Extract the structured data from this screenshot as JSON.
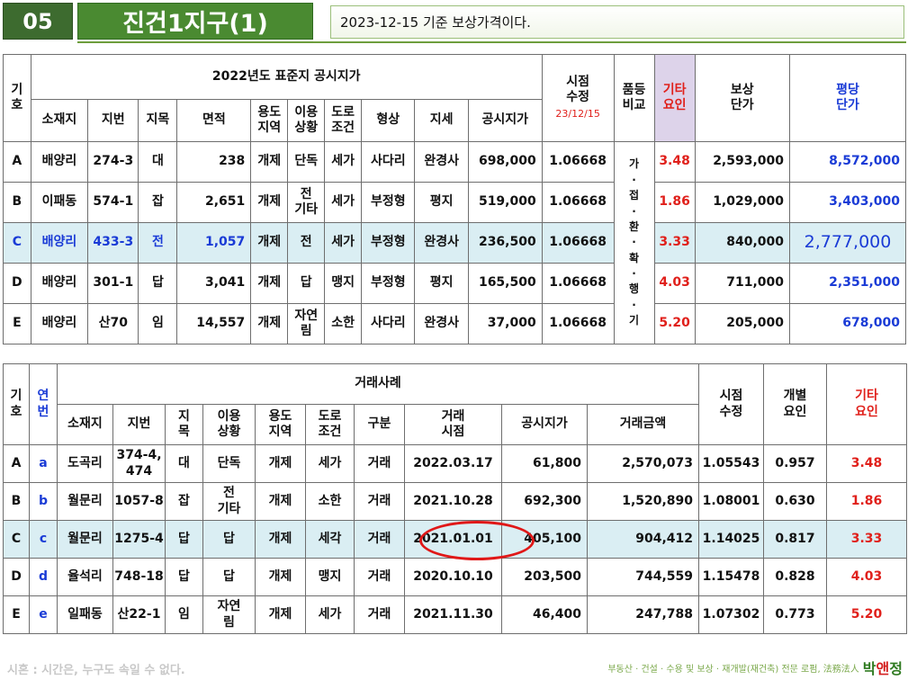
{
  "header": {
    "number": "05",
    "title": "진건1지구(1)",
    "note": "2023-12-15 기준 보상가격이다."
  },
  "table1": {
    "h_code": "기\n호",
    "h_group": "2022년도 표준지 공시지가",
    "h_time": "시점\n수정",
    "h_time_date": "23/12/15",
    "h_grade": "품등\n비교",
    "h_other": "기타\n요인",
    "h_comp": "보상\n단가",
    "h_pyeong": "평당\n단가",
    "cols": [
      "소재지",
      "지번",
      "지목",
      "면적",
      "용도\n지역",
      "이용\n상황",
      "도로\n조건",
      "형상",
      "지세",
      "공시지가"
    ],
    "grade_text": "가\n·\n접\n·\n환\n·\n확\n·\n행\n·\n기",
    "rows": [
      {
        "code": "A",
        "loc": "배양리",
        "num": "274-3",
        "cat": "대",
        "area": "238",
        "zone": "개제",
        "use": "단독",
        "road": "세가",
        "shape": "사다리",
        "terrain": "완경사",
        "price": "698,000",
        "time": "1.06668",
        "other": "3.48",
        "comp": "2,593,000",
        "pyeong": "8,572,000"
      },
      {
        "code": "B",
        "loc": "이패동",
        "num": "574-1",
        "cat": "잡",
        "area": "2,651",
        "zone": "개제",
        "use": "전\n기타",
        "road": "세가",
        "shape": "부정형",
        "terrain": "평지",
        "price": "519,000",
        "time": "1.06668",
        "other": "1.86",
        "comp": "1,029,000",
        "pyeong": "3,403,000"
      },
      {
        "code": "C",
        "loc": "배양리",
        "num": "433-3",
        "cat": "전",
        "area": "1,057",
        "zone": "개제",
        "use": "전",
        "road": "세가",
        "shape": "부정형",
        "terrain": "완경사",
        "price": "236,500",
        "time": "1.06668",
        "other": "3.33",
        "comp": "840,000",
        "pyeong": "2,777,000"
      },
      {
        "code": "D",
        "loc": "배양리",
        "num": "301-1",
        "cat": "답",
        "area": "3,041",
        "zone": "개제",
        "use": "답",
        "road": "맹지",
        "shape": "부정형",
        "terrain": "평지",
        "price": "165,500",
        "time": "1.06668",
        "other": "4.03",
        "comp": "711,000",
        "pyeong": "2,351,000"
      },
      {
        "code": "E",
        "loc": "배양리",
        "num": "산70",
        "cat": "임",
        "area": "14,557",
        "zone": "개제",
        "use": "자연\n림",
        "road": "소한",
        "shape": "사다리",
        "terrain": "완경사",
        "price": "37,000",
        "time": "1.06668",
        "other": "5.20",
        "comp": "205,000",
        "pyeong": "678,000"
      }
    ]
  },
  "table2": {
    "h_code": "기\n호",
    "h_serial": "연\n번",
    "h_group": "거래사례",
    "h_time": "시점\n수정",
    "h_indiv": "개별\n요인",
    "h_other": "기타\n요인",
    "cols": [
      "소재지",
      "지번",
      "지\n목",
      "이용\n상황",
      "용도\n지역",
      "도로\n조건",
      "구분",
      "거래\n시점",
      "공시지가",
      "거래금액"
    ],
    "rows": [
      {
        "code": "A",
        "serial": "a",
        "loc": "도곡리",
        "num": "374-4,\n474",
        "cat": "대",
        "use": "단독",
        "zone": "개제",
        "road": "세가",
        "kind": "거래",
        "date": "2022.03.17",
        "price": "61,800",
        "amount": "2,570,073",
        "time": "1.05543",
        "indiv": "0.957",
        "other": "3.48"
      },
      {
        "code": "B",
        "serial": "b",
        "loc": "월문리",
        "num": "1057-8",
        "cat": "잡",
        "use": "전\n기타",
        "zone": "개제",
        "road": "소한",
        "kind": "거래",
        "date": "2021.10.28",
        "price": "692,300",
        "amount": "1,520,890",
        "time": "1.08001",
        "indiv": "0.630",
        "other": "1.86"
      },
      {
        "code": "C",
        "serial": "c",
        "loc": "월문리",
        "num": "1275-4",
        "cat": "답",
        "use": "답",
        "zone": "개제",
        "road": "세각",
        "kind": "거래",
        "date": "2021.01.01",
        "price": "405,100",
        "amount": "904,412",
        "time": "1.14025",
        "indiv": "0.817",
        "other": "3.33"
      },
      {
        "code": "D",
        "serial": "d",
        "loc": "율석리",
        "num": "748-18",
        "cat": "답",
        "use": "답",
        "zone": "개제",
        "road": "맹지",
        "kind": "거래",
        "date": "2020.10.10",
        "price": "203,500",
        "amount": "744,559",
        "time": "1.15478",
        "indiv": "0.828",
        "other": "4.03"
      },
      {
        "code": "E",
        "serial": "e",
        "loc": "일패동",
        "num": "산22-1",
        "cat": "임",
        "use": "자연\n림",
        "zone": "개제",
        "road": "세가",
        "kind": "거래",
        "date": "2021.11.30",
        "price": "46,400",
        "amount": "247,788",
        "time": "1.07302",
        "indiv": "0.773",
        "other": "5.20"
      }
    ]
  },
  "footer": {
    "left": "시혼 : 시간은, 누구도 속일 수 없다.",
    "right": "부동산 · 건설 · 수용 및 보상 · 재개발(재건축) 전문 로펌, 法務法人",
    "logo_a": "박",
    "logo_b": "앤",
    "logo_c": "정"
  }
}
